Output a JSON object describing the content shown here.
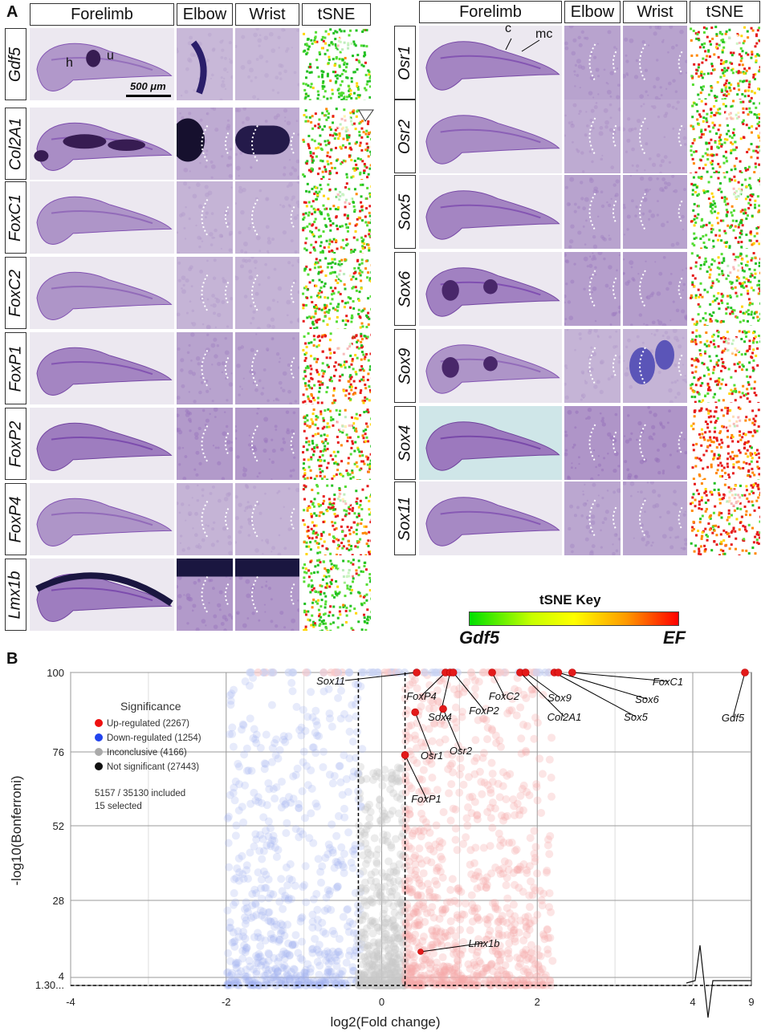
{
  "panel_a": {
    "letter": "A",
    "left_headers": [
      "Forelimb",
      "Elbow",
      "Wrist",
      "tSNE"
    ],
    "right_headers": [
      "Forelimb",
      "Elbow",
      "Wrist",
      "tSNE"
    ],
    "left_genes": [
      "Gdf5",
      "Col2A1",
      "FoxC1",
      "FoxC2",
      "FoxP1",
      "FoxP2",
      "FoxP4",
      "Lmx1b"
    ],
    "right_genes": [
      "Osr1",
      "Osr2",
      "Sox5",
      "Sox6",
      "Sox9",
      "Sox4",
      "Sox11"
    ],
    "annotations": {
      "h": "h",
      "u": "u",
      "c": "c",
      "mc": "mc"
    },
    "scale_bar": "500 μm",
    "tsne_key": {
      "title": "tSNE Key",
      "left": "Gdf5",
      "right": "EF",
      "colors": [
        "#00e000",
        "#ffff00",
        "#ff0000"
      ]
    }
  },
  "panel_b": {
    "letter": "B",
    "legend": {
      "title": "Significance",
      "items": [
        {
          "label": "Up-regulated (2267)",
          "color": "#ee1111"
        },
        {
          "label": "Down-regulated (1254)",
          "color": "#2244ee"
        },
        {
          "label": "Inconclusive (4166)",
          "color": "#aaaaaa"
        },
        {
          "label": "Not significant (27443)",
          "color": "#111111"
        }
      ],
      "note1": "5157 / 35130 included",
      "note2": "15 selected"
    },
    "colors": {
      "up": "#ee1111",
      "down": "#2244ee",
      "inconclusive": "#aaaaaa",
      "not_significant": "#111111"
    }
  },
  "chart_data": {
    "type": "scatter",
    "title": "",
    "xlabel": "log2(Fold change)",
    "ylabel": "-log10(Bonferroni)",
    "x_ticks": [
      "-4",
      "-2",
      "0",
      "2",
      "4",
      "9"
    ],
    "y_ticks": [
      "1.30...",
      "4",
      "28",
      "52",
      "76",
      "100"
    ],
    "xlim": [
      -4,
      9
    ],
    "x_axis_break": [
      4,
      8.3
    ],
    "ylim": [
      0,
      100
    ],
    "thresholds": {
      "x": [
        -0.3,
        0.3
      ],
      "y": 1.3
    },
    "grid": true,
    "legend_position": "top-left",
    "labeled_points": [
      {
        "name": "Sox11",
        "x": 0.45,
        "y": 100
      },
      {
        "name": "FoxP4",
        "x": 0.82,
        "y": 100
      },
      {
        "name": "Sox4",
        "x": 0.88,
        "y": 100
      },
      {
        "name": "FoxP2",
        "x": 0.92,
        "y": 100
      },
      {
        "name": "FoxC2",
        "x": 1.42,
        "y": 100
      },
      {
        "name": "Col2A1",
        "x": 1.78,
        "y": 100
      },
      {
        "name": "Sox9",
        "x": 1.85,
        "y": 100
      },
      {
        "name": "Sox5",
        "x": 2.22,
        "y": 100
      },
      {
        "name": "Sox6",
        "x": 2.27,
        "y": 100
      },
      {
        "name": "FoxC1",
        "x": 2.45,
        "y": 100
      },
      {
        "name": "Gdf5",
        "x": 8.9,
        "y": 100
      },
      {
        "name": "Osr1",
        "x": 0.43,
        "y": 88
      },
      {
        "name": "Osr2",
        "x": 0.79,
        "y": 89
      },
      {
        "name": "FoxP1",
        "x": 0.3,
        "y": 75
      },
      {
        "name": "Lmx1b",
        "x": 0.5,
        "y": 12
      }
    ]
  }
}
